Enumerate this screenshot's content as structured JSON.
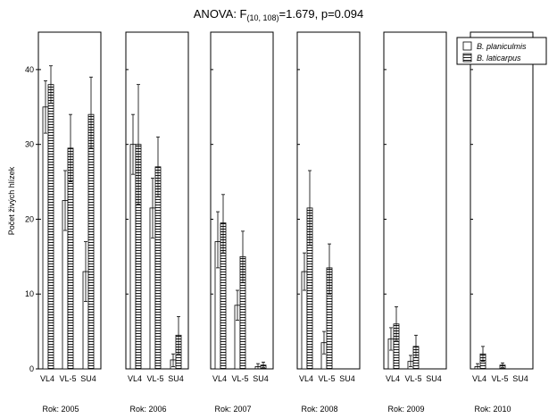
{
  "chart_data": {
    "type": "bar",
    "title_main": "ANOVA: F",
    "title_sub": "(10, 108)",
    "title_rest": "=1.679, p=0.094",
    "ylabel": "Počet živých hlízek",
    "ylim": [
      0,
      45
    ],
    "yticks": [
      0,
      10,
      20,
      30,
      40
    ],
    "categories": [
      "VL4",
      "VL-5",
      "SU4"
    ],
    "panels": [
      {
        "label": "Rok: 2005",
        "series": [
          {
            "name": "B. planiculmis",
            "values": [
              35.0,
              22.5,
              13.0
            ],
            "err_low": [
              31.5,
              18.5,
              9.0
            ],
            "err_high": [
              38.5,
              26.5,
              17.0
            ]
          },
          {
            "name": "B. laticarpus",
            "values": [
              38.0,
              29.5,
              34.0
            ],
            "err_low": [
              35.5,
              25.0,
              29.5
            ],
            "err_high": [
              40.5,
              34.0,
              39.0
            ]
          }
        ]
      },
      {
        "label": "Rok: 2006",
        "series": [
          {
            "name": "B. planiculmis",
            "values": [
              30.0,
              21.5,
              1.2
            ],
            "err_low": [
              26.0,
              17.5,
              0.3
            ],
            "err_high": [
              34.0,
              25.5,
              2.0
            ]
          },
          {
            "name": "B. laticarpus",
            "values": [
              30.0,
              27.0,
              4.5
            ],
            "err_low": [
              22.0,
              23.0,
              2.0
            ],
            "err_high": [
              38.0,
              31.0,
              7.0
            ]
          }
        ]
      },
      {
        "label": "Rok: 2007",
        "series": [
          {
            "name": "B. planiculmis",
            "values": [
              17.0,
              8.5,
              0.3
            ],
            "err_low": [
              13.5,
              6.5,
              0.0
            ],
            "err_high": [
              21.0,
              10.5,
              0.7
            ]
          },
          {
            "name": "B. laticarpus",
            "values": [
              19.5,
              15.0,
              0.5
            ],
            "err_low": [
              15.5,
              11.5,
              0.2
            ],
            "err_high": [
              23.3,
              18.4,
              0.9
            ]
          }
        ]
      },
      {
        "label": "Rok: 2008",
        "series": [
          {
            "name": "B. planiculmis",
            "values": [
              13.0,
              3.5,
              0.0
            ],
            "err_low": [
              10.5,
              2.0,
              0.0
            ],
            "err_high": [
              15.5,
              5.0,
              0.0
            ]
          },
          {
            "name": "B. laticarpus",
            "values": [
              21.5,
              13.5,
              0.0
            ],
            "err_low": [
              16.5,
              10.0,
              0.0
            ],
            "err_high": [
              26.5,
              16.7,
              0.0
            ]
          }
        ]
      },
      {
        "label": "Rok: 2009",
        "series": [
          {
            "name": "B. planiculmis",
            "values": [
              4.0,
              1.0,
              0.0
            ],
            "err_low": [
              2.5,
              0.3,
              0.0
            ],
            "err_high": [
              5.5,
              1.8,
              0.0
            ]
          },
          {
            "name": "B. laticarpus",
            "values": [
              6.0,
              3.0,
              0.0
            ],
            "err_low": [
              3.8,
              1.5,
              0.0
            ],
            "err_high": [
              8.3,
              4.5,
              0.0
            ]
          }
        ]
      },
      {
        "label": "Rok: 2010",
        "series": [
          {
            "name": "B. planiculmis",
            "values": [
              0.3,
              0.0,
              0.0
            ],
            "err_low": [
              0.0,
              0.0,
              0.0
            ],
            "err_high": [
              0.7,
              0.0,
              0.0
            ]
          },
          {
            "name": "B. laticarpus",
            "values": [
              2.0,
              0.5,
              0.0
            ],
            "err_low": [
              1.0,
              0.2,
              0.0
            ],
            "err_high": [
              3.0,
              0.8,
              0.0
            ]
          }
        ]
      }
    ],
    "legend": {
      "placement": "top-right",
      "entries": [
        "B. planiculmis",
        "B. laticarpus"
      ]
    },
    "grid": false,
    "colors": {
      "bar_fill": "#ffffff",
      "stroke": "#000000",
      "background": "#ffffff"
    }
  }
}
